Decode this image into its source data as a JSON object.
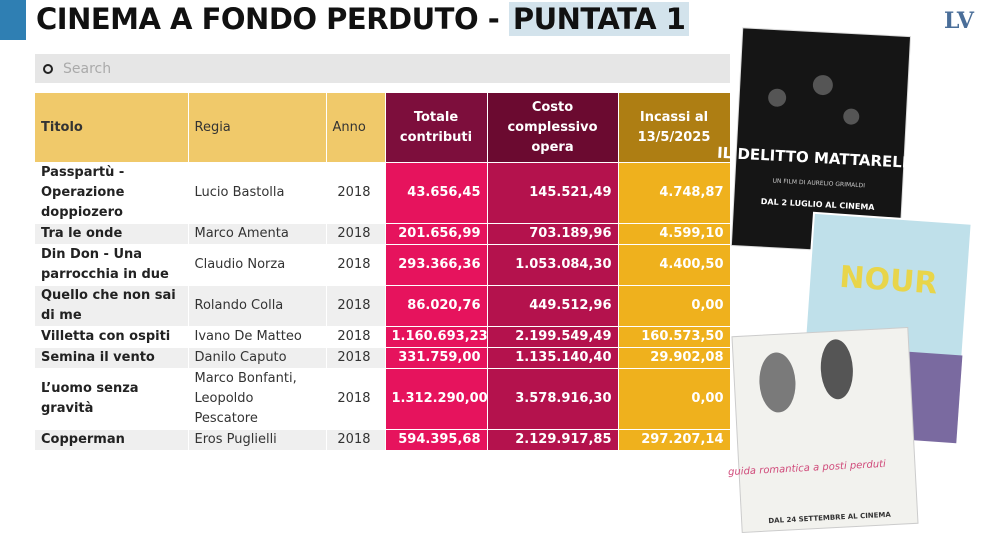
{
  "header": {
    "title": "CINEMA A FONDO PERDUTO - ",
    "highlight": "PUNTATA 1",
    "logo": "LV"
  },
  "search": {
    "placeholder": "Search"
  },
  "table": {
    "columns": [
      "Titolo",
      "Regia",
      "Anno",
      "Totale contributi",
      "Costo complessivo opera",
      "Incassi al 13/5/2025"
    ],
    "rows": [
      [
        "Passpartù - Operazione doppiozero",
        "Lucio Bastolla",
        "2018",
        "43.656,45",
        "145.521,49",
        "4.748,87"
      ],
      [
        "Tra le onde",
        "Marco Amenta",
        "2018",
        "201.656,99",
        "703.189,96",
        "4.599,10"
      ],
      [
        "Din Don - Una parrocchia in due",
        "Claudio Norza",
        "2018",
        "293.366,36",
        "1.053.084,30",
        "4.400,50"
      ],
      [
        "Quello che non sai di me",
        "Rolando Colla",
        "2018",
        "86.020,76",
        "449.512,96",
        "0,00"
      ],
      [
        "Villetta con ospiti",
        "Ivano De Matteo",
        "2018",
        "1.160.693,23",
        "2.199.549,49",
        "160.573,50"
      ],
      [
        "Semina il vento",
        "Danilo Caputo",
        "2018",
        "331.759,00",
        "1.135.140,40",
        "29.902,08"
      ],
      [
        "L’uomo senza gravità",
        "Marco Bonfanti, Leopoldo Pescatore",
        "2018",
        "1.312.290,00",
        "3.578.916,30",
        "0,00"
      ],
      [
        "Copperman",
        "Eros Puglielli",
        "2018",
        "594.395,68",
        "2.129.917,85",
        "297.207,14"
      ]
    ]
  },
  "posters": [
    {
      "title": "IL DELITTO MATTARELLA",
      "credit": "UN FILM DI AURELIO GRIMALDI",
      "release": "DAL 2 LUGLIO AL CINEMA"
    },
    {
      "title": "NOUR"
    },
    {
      "title": "guida romantica a posti perduti",
      "release": "DAL 24 SETTEMBRE AL CINEMA"
    }
  ]
}
